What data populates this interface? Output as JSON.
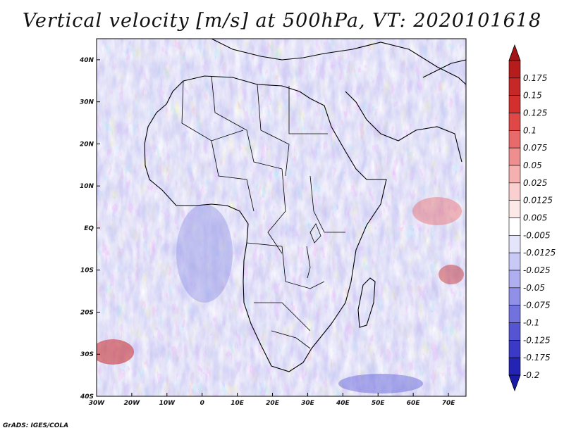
{
  "title": "Vertical velocity [m/s] at 500hPa, VT: 2020101618",
  "credit": "GrADS: IGES/COLA",
  "map": {
    "lon_range": [
      -30,
      75
    ],
    "lat_range": [
      -40,
      45
    ],
    "lon_ticks": [
      {
        "lon": -30,
        "label": "30W"
      },
      {
        "lon": -20,
        "label": "20W"
      },
      {
        "lon": -10,
        "label": "10W"
      },
      {
        "lon": 0,
        "label": "0"
      },
      {
        "lon": 10,
        "label": "10E"
      },
      {
        "lon": 20,
        "label": "20E"
      },
      {
        "lon": 30,
        "label": "30E"
      },
      {
        "lon": 40,
        "label": "40E"
      },
      {
        "lon": 50,
        "label": "50E"
      },
      {
        "lon": 60,
        "label": "60E"
      },
      {
        "lon": 70,
        "label": "70E"
      }
    ],
    "lat_ticks": [
      {
        "lat": 40,
        "label": "40N"
      },
      {
        "lat": 30,
        "label": "30N"
      },
      {
        "lat": 20,
        "label": "20N"
      },
      {
        "lat": 10,
        "label": "10N"
      },
      {
        "lat": 0,
        "label": "EQ"
      },
      {
        "lat": -10,
        "label": "10S"
      },
      {
        "lat": -20,
        "label": "20S"
      },
      {
        "lat": -30,
        "label": "30S"
      },
      {
        "lat": -40,
        "label": "40S"
      }
    ]
  },
  "colorbar": {
    "levels": [
      {
        "label": "0.175",
        "color": "#b71c1c"
      },
      {
        "label": "0.15",
        "color": "#c62828"
      },
      {
        "label": "0.125",
        "color": "#d32f2f"
      },
      {
        "label": "0.1",
        "color": "#e04848"
      },
      {
        "label": "0.075",
        "color": "#e86a6a"
      },
      {
        "label": "0.05",
        "color": "#ef8e8e"
      },
      {
        "label": "0.025",
        "color": "#f5b0b0"
      },
      {
        "label": "0.0125",
        "color": "#f9cfcf"
      },
      {
        "label": "0.005",
        "color": "#fde8e8"
      },
      {
        "label": "-0.005",
        "color": "#ffffff"
      },
      {
        "label": "-0.0125",
        "color": "#e4e4fb"
      },
      {
        "label": "-0.025",
        "color": "#c9c9f6"
      },
      {
        "label": "-0.05",
        "color": "#aeaef0"
      },
      {
        "label": "-0.075",
        "color": "#9090e8"
      },
      {
        "label": "-0.1",
        "color": "#7272df"
      },
      {
        "label": "-0.125",
        "color": "#5555d4"
      },
      {
        "label": "-0.175",
        "color": "#3a3ac6"
      },
      {
        "label": "-0.2",
        "color": "#2323b4"
      }
    ],
    "top_cap_color": "#a31515",
    "bottom_cap_color": "#1a1aa8"
  }
}
